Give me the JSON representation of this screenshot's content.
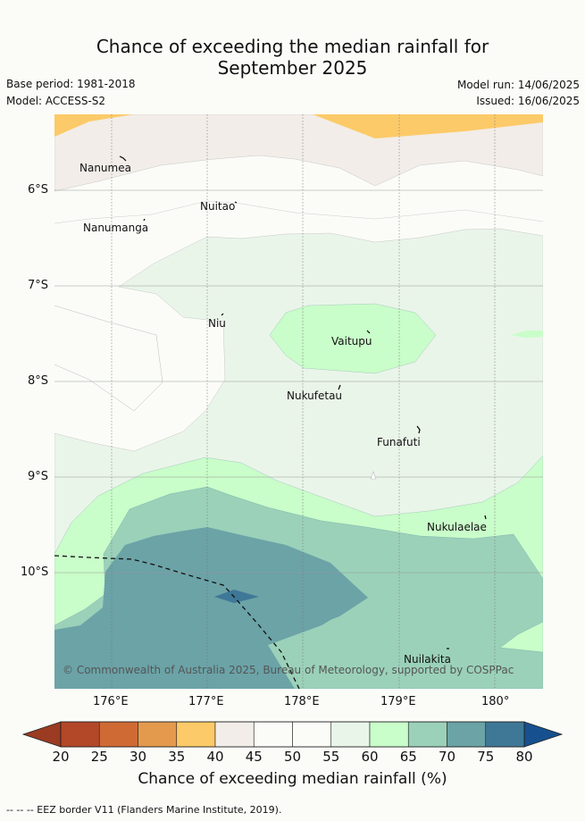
{
  "title": {
    "line1": "Chance of exceeding the median rainfall for",
    "line2": "September 2025"
  },
  "meta": {
    "base_period": "Base period: 1981-2018",
    "model": "Model: ACCESS-S2",
    "model_run": "Model run: 14/06/2025",
    "issued": "Issued: 16/06/2025"
  },
  "map": {
    "lat_labels": [
      "6°S",
      "7°S",
      "8°S",
      "9°S",
      "10°S"
    ],
    "lon_labels": [
      "176°E",
      "177°E",
      "178°E",
      "179°E",
      "180°"
    ],
    "islands": [
      "Nanumea",
      "Nuitao",
      "Nanumanga",
      "Niu",
      "Vaitupu",
      "Nukufetau",
      "Funafuti",
      "Nukulaelae",
      "Nuilakita"
    ],
    "copyright": "© Commonwealth of Australia 2025, Bureau of Meteorology, supported by COSPPac"
  },
  "colorbar": {
    "ticks": [
      "20",
      "25",
      "30",
      "35",
      "40",
      "45",
      "50",
      "55",
      "60",
      "65",
      "70",
      "75",
      "80"
    ],
    "colors": [
      "#b34828",
      "#cf6a34",
      "#e49a4d",
      "#fcca68",
      "#f2ede8",
      "#fbfcf8",
      "#fbfcf8",
      "#eaf5e9",
      "#c9fdc9",
      "#9bd1b9",
      "#6ba3a7",
      "#3f7897"
    ],
    "under_color": "#9a3b22",
    "over_color": "#17508e",
    "title": "Chance of exceeding median rainfall (%)"
  },
  "legend": {
    "eez_note": "--  --  -- EEZ border V11 (Flanders Marine Institute, 2019)."
  }
}
